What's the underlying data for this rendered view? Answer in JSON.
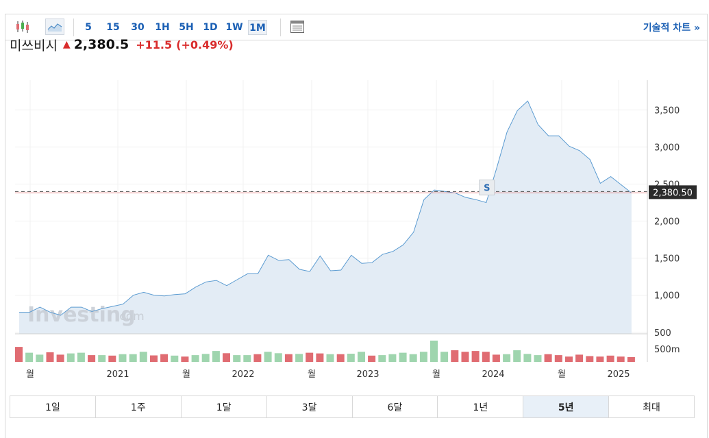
{
  "toolbar": {
    "intervals": [
      "5",
      "15",
      "30",
      "1H",
      "5H",
      "1D",
      "1W",
      "1M"
    ],
    "selected_interval": "1M",
    "icons": [
      "candlestick-icon",
      "area-chart-icon",
      "indicator-panel-icon"
    ],
    "tech_link": "기술적 차트 »"
  },
  "quote": {
    "name": "미쓰비시",
    "direction": "up",
    "price": "2,380.5",
    "change": "+11.5",
    "change_pct": "(+0.49%)"
  },
  "watermark": {
    "brand": "Investing",
    "suffix": ".com"
  },
  "current_price_label": "2,380.50",
  "s_marker": "S",
  "ranges": [
    "1일",
    "1주",
    "1달",
    "3달",
    "6달",
    "1년",
    "5년",
    "최대"
  ],
  "active_range": "5년",
  "colors": {
    "accent": "#1a5fb4",
    "up": "#d92b2b",
    "line": "#5b9bd1",
    "area": "#e3ecf5",
    "vol_up": "#9fd5ae",
    "vol_down": "#e06c72"
  },
  "chart_data": {
    "type": "area",
    "x_tick_labels": [
      "월",
      "2021",
      "월",
      "2022",
      "월",
      "2023",
      "월",
      "2024",
      "월",
      "2025"
    ],
    "y_ticks": [
      500,
      1000,
      1500,
      2000,
      2500,
      3000,
      3500
    ],
    "y_tick_labels": [
      "500",
      "1,000",
      "1,500",
      "2,000",
      "2,500",
      "3,000",
      "3,500"
    ],
    "ylim": [
      480,
      3900
    ],
    "volume_axis_label": "500m",
    "current_price": 2380.5,
    "s_marker_index": 45,
    "grid": true,
    "series": [
      {
        "values": [
          770,
          770,
          840,
          770,
          730,
          840,
          840,
          780,
          820,
          850,
          880,
          1000,
          1040,
          1000,
          990,
          1010,
          1020,
          1110,
          1180,
          1200,
          1130,
          1210,
          1290,
          1290,
          1540,
          1470,
          1480,
          1350,
          1320,
          1530,
          1330,
          1340,
          1540,
          1430,
          1440,
          1550,
          1590,
          1680,
          1850,
          2290,
          2420,
          2400,
          2380,
          2320,
          2290,
          2250,
          2710,
          3200,
          3490,
          3620,
          3300,
          3150,
          3150,
          3010,
          2950,
          2830,
          2510,
          2600,
          2490,
          2380
        ]
      }
    ],
    "volume": [
      {
        "v": 0.62,
        "dir": "down"
      },
      {
        "v": 0.38,
        "dir": "up"
      },
      {
        "v": 0.3,
        "dir": "up"
      },
      {
        "v": 0.4,
        "dir": "down"
      },
      {
        "v": 0.3,
        "dir": "down"
      },
      {
        "v": 0.35,
        "dir": "up"
      },
      {
        "v": 0.38,
        "dir": "up"
      },
      {
        "v": 0.28,
        "dir": "down"
      },
      {
        "v": 0.28,
        "dir": "up"
      },
      {
        "v": 0.26,
        "dir": "down"
      },
      {
        "v": 0.32,
        "dir": "up"
      },
      {
        "v": 0.32,
        "dir": "up"
      },
      {
        "v": 0.42,
        "dir": "up"
      },
      {
        "v": 0.27,
        "dir": "down"
      },
      {
        "v": 0.32,
        "dir": "down"
      },
      {
        "v": 0.26,
        "dir": "up"
      },
      {
        "v": 0.22,
        "dir": "down"
      },
      {
        "v": 0.28,
        "dir": "up"
      },
      {
        "v": 0.33,
        "dir": "up"
      },
      {
        "v": 0.45,
        "dir": "up"
      },
      {
        "v": 0.36,
        "dir": "down"
      },
      {
        "v": 0.28,
        "dir": "up"
      },
      {
        "v": 0.28,
        "dir": "up"
      },
      {
        "v": 0.32,
        "dir": "down"
      },
      {
        "v": 0.42,
        "dir": "up"
      },
      {
        "v": 0.36,
        "dir": "up"
      },
      {
        "v": 0.32,
        "dir": "down"
      },
      {
        "v": 0.33,
        "dir": "up"
      },
      {
        "v": 0.38,
        "dir": "down"
      },
      {
        "v": 0.35,
        "dir": "down"
      },
      {
        "v": 0.32,
        "dir": "up"
      },
      {
        "v": 0.32,
        "dir": "down"
      },
      {
        "v": 0.34,
        "dir": "up"
      },
      {
        "v": 0.42,
        "dir": "up"
      },
      {
        "v": 0.26,
        "dir": "down"
      },
      {
        "v": 0.28,
        "dir": "up"
      },
      {
        "v": 0.32,
        "dir": "up"
      },
      {
        "v": 0.38,
        "dir": "up"
      },
      {
        "v": 0.32,
        "dir": "up"
      },
      {
        "v": 0.42,
        "dir": "up"
      },
      {
        "v": 0.88,
        "dir": "up"
      },
      {
        "v": 0.42,
        "dir": "up"
      },
      {
        "v": 0.48,
        "dir": "down"
      },
      {
        "v": 0.42,
        "dir": "down"
      },
      {
        "v": 0.45,
        "dir": "down"
      },
      {
        "v": 0.42,
        "dir": "down"
      },
      {
        "v": 0.3,
        "dir": "down"
      },
      {
        "v": 0.32,
        "dir": "up"
      },
      {
        "v": 0.48,
        "dir": "up"
      },
      {
        "v": 0.33,
        "dir": "up"
      },
      {
        "v": 0.28,
        "dir": "up"
      },
      {
        "v": 0.32,
        "dir": "down"
      },
      {
        "v": 0.28,
        "dir": "down"
      },
      {
        "v": 0.22,
        "dir": "down"
      },
      {
        "v": 0.3,
        "dir": "down"
      },
      {
        "v": 0.24,
        "dir": "down"
      },
      {
        "v": 0.22,
        "dir": "down"
      },
      {
        "v": 0.26,
        "dir": "down"
      },
      {
        "v": 0.22,
        "dir": "down"
      },
      {
        "v": 0.2,
        "dir": "down"
      }
    ]
  }
}
